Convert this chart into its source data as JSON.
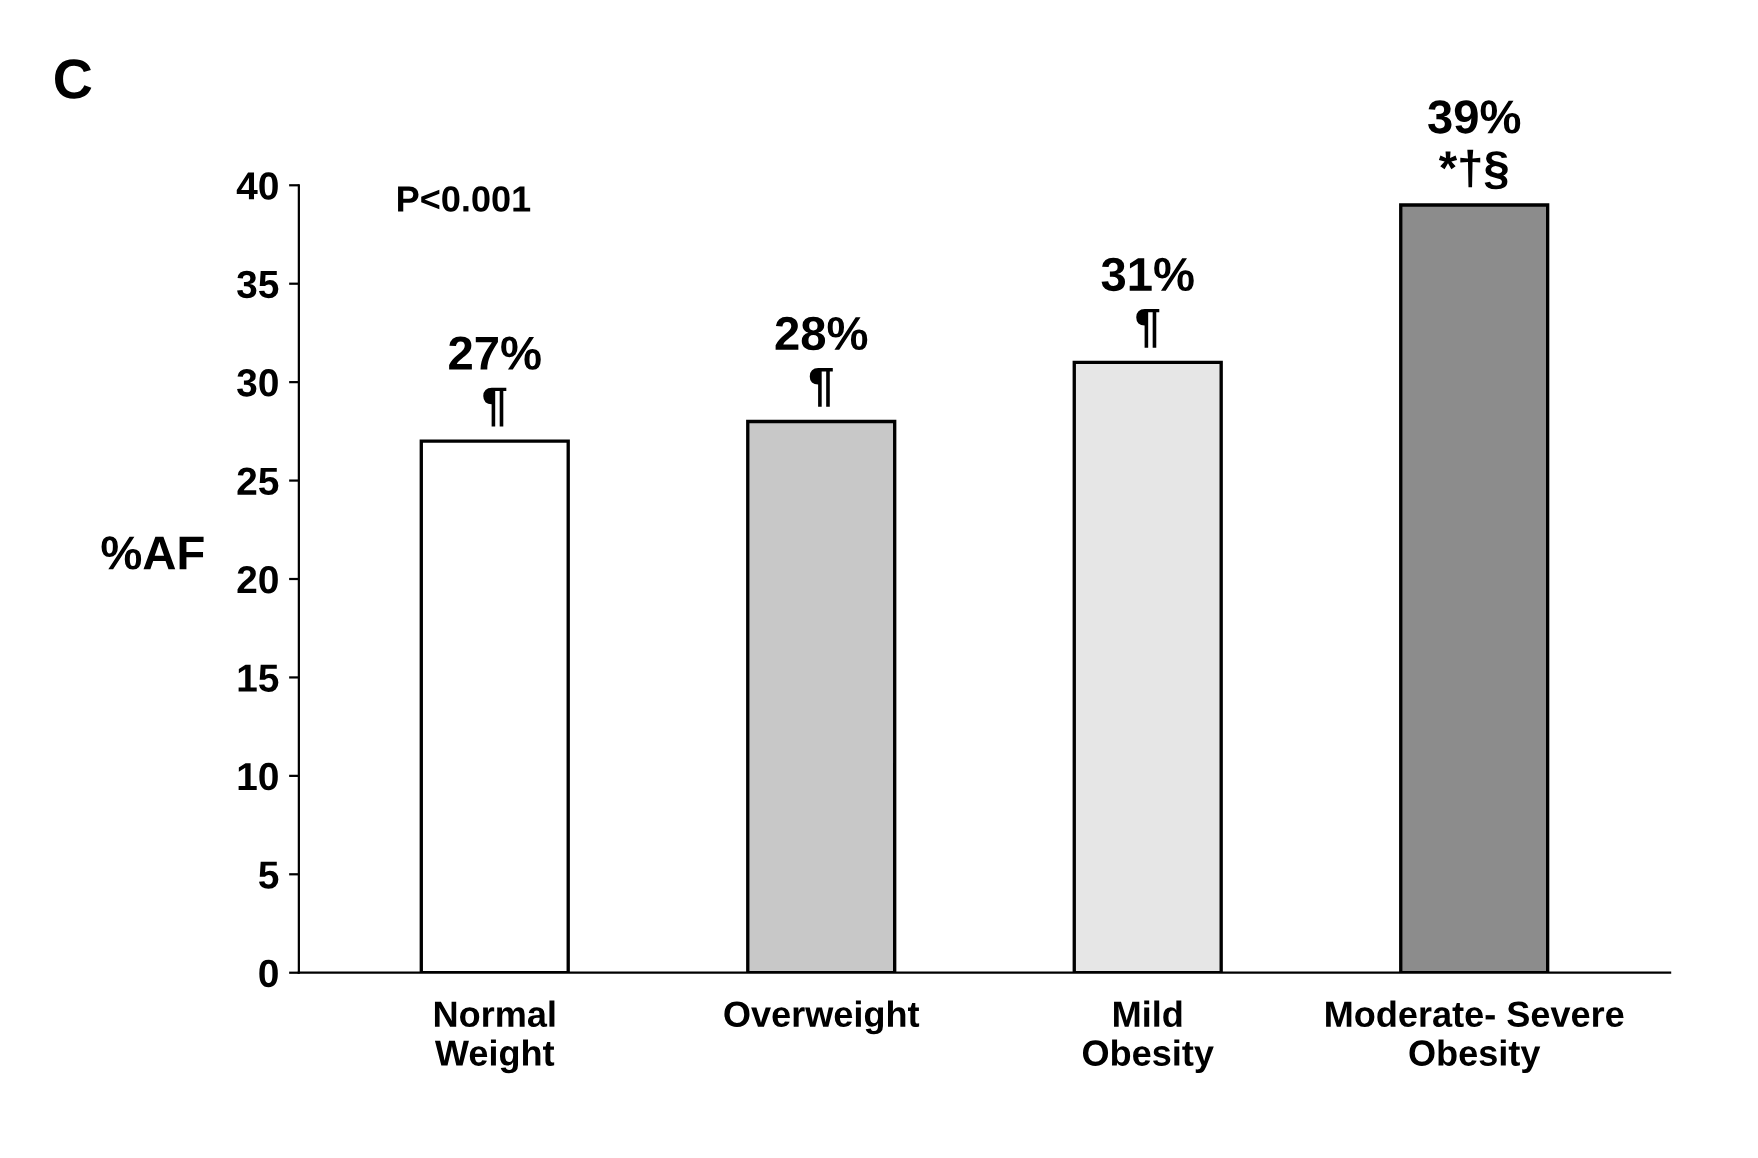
{
  "chart_data": {
    "type": "bar",
    "title": "C",
    "ylabel": "%AF",
    "categories": [
      "Normal\nWeight",
      "Overweight",
      "Mild\nObesity",
      "Moderate- Severe\nObesity"
    ],
    "values": [
      27,
      28,
      31,
      39
    ],
    "colors": [
      "#ffffff",
      "#c8c8c8",
      "#e6e6e6",
      "#8c8c8c"
    ],
    "value_labels": [
      "27%\n¶",
      "28%\n¶",
      "31%\n¶",
      "39%\n*†§"
    ],
    "annotations": [
      "P<0.001"
    ],
    "ylim": [
      0,
      40
    ],
    "yticks": [
      0,
      5,
      10,
      15,
      20,
      25,
      30,
      35,
      40
    ],
    "grid": false,
    "legend": false
  }
}
